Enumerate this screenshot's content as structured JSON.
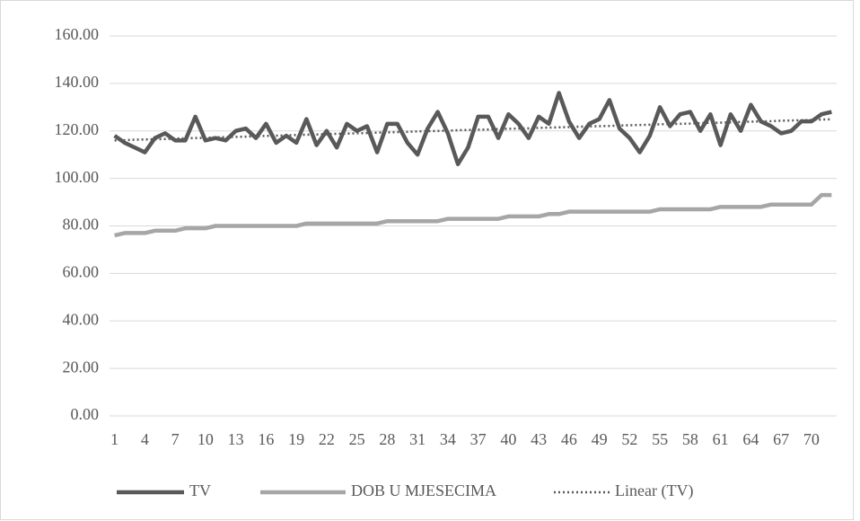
{
  "chart_data": {
    "type": "line",
    "categories": [
      1,
      null,
      null,
      4,
      null,
      null,
      7,
      null,
      null,
      10,
      null,
      null,
      13,
      null,
      null,
      16,
      null,
      null,
      19,
      null,
      null,
      22,
      null,
      null,
      25,
      null,
      null,
      28,
      null,
      null,
      31,
      null,
      null,
      34,
      null,
      null,
      37,
      null,
      null,
      40,
      null,
      null,
      43,
      null,
      null,
      46,
      null,
      null,
      49,
      null,
      null,
      52,
      null,
      null,
      55,
      null,
      null,
      58,
      null,
      null,
      61,
      null,
      null,
      64,
      null,
      null,
      67,
      null,
      null,
      70,
      null,
      null
    ],
    "ylim": [
      0,
      160
    ],
    "yticks": [
      {
        "value": 0,
        "label": "0.00"
      },
      {
        "value": 20,
        "label": "20.00"
      },
      {
        "value": 40,
        "label": "40.00"
      },
      {
        "value": 60,
        "label": "60.00"
      },
      {
        "value": 80,
        "label": "80.00"
      },
      {
        "value": 100,
        "label": "100.00"
      },
      {
        "value": 120,
        "label": "120.00"
      },
      {
        "value": 140,
        "label": "140.00"
      },
      {
        "value": 160,
        "label": "160.00"
      }
    ],
    "grid": true,
    "legend": "bottom",
    "series": [
      {
        "name": "TV",
        "color": "#595959",
        "dash": "solid",
        "values": [
          118,
          115,
          113,
          111,
          117,
          119,
          116,
          116,
          126,
          116,
          117,
          116,
          120,
          121,
          117,
          123,
          115,
          118,
          115,
          125,
          114,
          120,
          113,
          123,
          120,
          122,
          111,
          123,
          123,
          115,
          110,
          121,
          128,
          119,
          106,
          113,
          126,
          126,
          117,
          127,
          123,
          117,
          126,
          123,
          136,
          124,
          117,
          123,
          125,
          133,
          121,
          117,
          111,
          118,
          130,
          122,
          127,
          128,
          120,
          127,
          114,
          127,
          120,
          131,
          124,
          122,
          119,
          120,
          124,
          124,
          127,
          128
        ]
      },
      {
        "name": "DOB U MJESECIMA",
        "color": "#a6a6a6",
        "dash": "solid",
        "values": [
          76,
          77,
          77,
          77,
          78,
          78,
          78,
          79,
          79,
          79,
          80,
          80,
          80,
          80,
          80,
          80,
          80,
          80,
          80,
          81,
          81,
          81,
          81,
          81,
          81,
          81,
          81,
          82,
          82,
          82,
          82,
          82,
          82,
          83,
          83,
          83,
          83,
          83,
          83,
          84,
          84,
          84,
          84,
          85,
          85,
          86,
          86,
          86,
          86,
          86,
          86,
          86,
          86,
          86,
          87,
          87,
          87,
          87,
          87,
          87,
          88,
          88,
          88,
          88,
          88,
          89,
          89,
          89,
          89,
          89,
          93,
          93
        ]
      },
      {
        "name": "Linear (TV)",
        "color": "#595959",
        "dash": "dot",
        "values": [
          116.0,
          116.1,
          116.3,
          116.4,
          116.5,
          116.6,
          116.8,
          116.9,
          117.0,
          117.1,
          117.3,
          117.4,
          117.5,
          117.6,
          117.8,
          117.9,
          118.0,
          118.1,
          118.3,
          118.4,
          118.5,
          118.6,
          118.8,
          118.9,
          119.0,
          119.1,
          119.3,
          119.4,
          119.5,
          119.6,
          119.8,
          119.9,
          120.0,
          120.1,
          120.3,
          120.4,
          120.5,
          120.6,
          120.8,
          120.9,
          121.0,
          121.1,
          121.3,
          121.4,
          121.5,
          121.6,
          121.8,
          121.9,
          122.0,
          122.1,
          122.3,
          122.4,
          122.5,
          122.6,
          122.8,
          122.9,
          123.0,
          123.1,
          123.3,
          123.4,
          123.5,
          123.6,
          123.8,
          123.9,
          124.0,
          124.1,
          124.3,
          124.4,
          124.5,
          124.6,
          124.8,
          124.9
        ]
      }
    ]
  }
}
